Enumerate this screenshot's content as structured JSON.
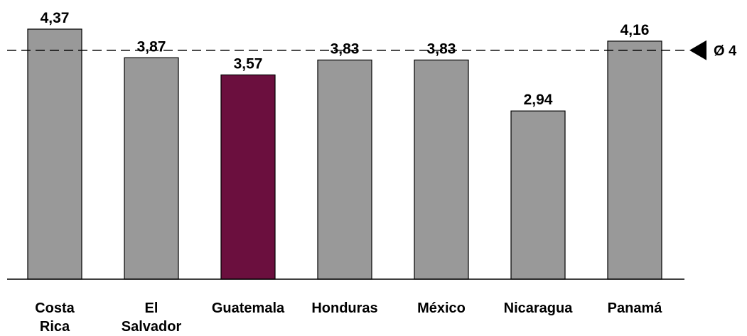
{
  "chart_data": {
    "type": "bar",
    "title": "",
    "xlabel": "",
    "ylabel": "",
    "categories": [
      [
        "Costa",
        "Rica"
      ],
      [
        "El",
        "Salvador"
      ],
      [
        "Guatemala"
      ],
      [
        "Honduras"
      ],
      [
        "México"
      ],
      [
        "Nicaragua"
      ],
      [
        "Panamá"
      ]
    ],
    "values": [
      4.37,
      3.87,
      3.57,
      3.83,
      3.83,
      2.94,
      4.16
    ],
    "value_labels": [
      "4,37",
      "3,87",
      "3,57",
      "3,83",
      "3,83",
      "2,94",
      "4,16"
    ],
    "ylim": [
      0,
      4.37
    ],
    "grid": false,
    "highlight_index": 2,
    "colors": {
      "bar": "#999999",
      "highlight": "#6B0F3E",
      "outline": "#000000"
    },
    "average": {
      "value": 4,
      "label": "Ø 4",
      "marker_icon": "triangle-left-icon"
    }
  }
}
